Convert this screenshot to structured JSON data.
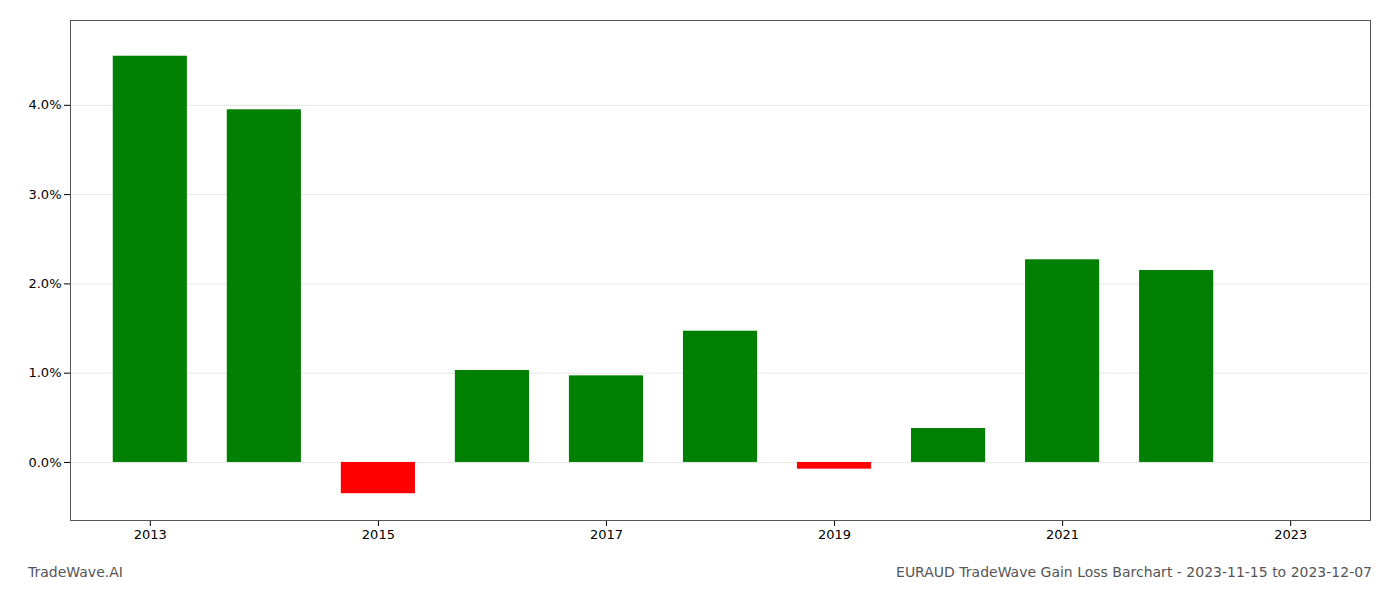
{
  "chart_data": {
    "type": "bar",
    "x": [
      2013,
      2014,
      2015,
      2016,
      2017,
      2018,
      2019,
      2020,
      2021,
      2022
    ],
    "values": [
      0.0455,
      0.0395,
      -0.0035,
      0.0103,
      0.0097,
      0.0147,
      -0.00075,
      0.0038,
      0.0227,
      0.0215
    ],
    "colors": [
      "#008000",
      "#008000",
      "#ff0000",
      "#008000",
      "#008000",
      "#008000",
      "#ff0000",
      "#008000",
      "#008000",
      "#008000"
    ],
    "xlim": [
      2012.3,
      2023.7
    ],
    "xticks": [
      2013,
      2015,
      2017,
      2019,
      2021,
      2023
    ],
    "ylim": [
      -0.0065,
      0.0495
    ],
    "yticks": [
      {
        "value": 0,
        "label": "0.0%"
      },
      {
        "value": 0.01,
        "label": "1.0%"
      },
      {
        "value": 0.02,
        "label": "2.0%"
      },
      {
        "value": 0.03,
        "label": "3.0%"
      },
      {
        "value": 0.04,
        "label": "4.0%"
      }
    ],
    "grid": true,
    "annotations": [
      "TradeWave.AI",
      "EURAUD TradeWave Gain Loss Barchart - 2023-11-15 to 2023-12-07"
    ]
  }
}
